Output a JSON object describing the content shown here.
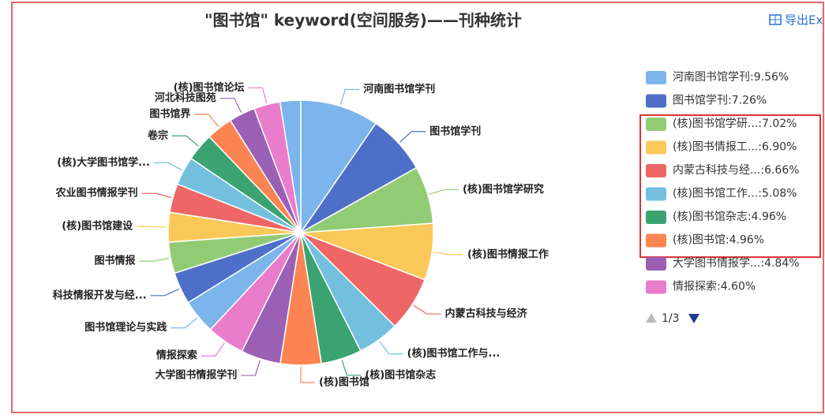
{
  "chart_data": {
    "type": "pie",
    "title": "\"图书馆\" keyword(空间服务)——刊种统计",
    "export": "导出Ex",
    "categories": [
      "河南图书馆学刊",
      "图书馆学刊",
      "(核)图书馆学研究",
      "(核)图书情报工作",
      "内蒙古科技与经济",
      "(核)图书馆工作与...",
      "(核)图书馆杂志",
      "(核)图书馆",
      "大学图书情报学刊",
      "情报探索",
      "图书馆理论与实践",
      "科技情报开发与经...",
      "图书情报",
      "(核)图书馆建设",
      "农业图书情报学刊",
      "(核)大学图书馆学...",
      "卷宗",
      "图书馆界",
      "河北科技图苑",
      "(核)图书馆论坛",
      null
    ],
    "values": [
      9.56,
      7.26,
      7.02,
      6.9,
      6.66,
      5.08,
      4.96,
      4.96,
      4.84,
      4.6,
      4.2,
      3.9,
      3.8,
      3.6,
      3.5,
      3.5,
      3.4,
      3.2,
      3.2,
      3.2,
      2.5
    ],
    "colors": [
      "#7cb5ec",
      "#4e6fc8",
      "#91cc75",
      "#fac858",
      "#ee6666",
      "#73c0de",
      "#3ba272",
      "#fc8452",
      "#9a60b4",
      "#ea7ccc"
    ],
    "legend": {
      "items": [
        "河南图书馆学刊:9.56%",
        "图书馆学刊:7.26%",
        "(核)图书馆学研...:7.02%",
        "(核)图书情报工...:6.90%",
        "内蒙古科技与经...:6.66%",
        "(核)图书馆工作...:5.08%",
        "(核)图书馆杂志:4.96%",
        "(核)图书馆:4.96%",
        "大学图书情报学...:4.84%",
        "情报探索:4.60%"
      ],
      "page": "1/3"
    }
  }
}
